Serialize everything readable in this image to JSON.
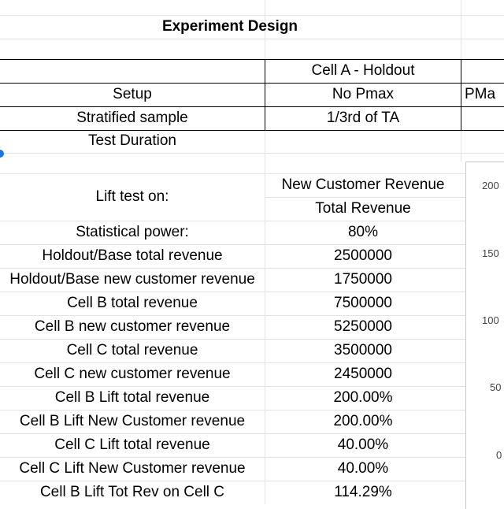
{
  "title": "Experiment Design",
  "headers": {
    "cell_a": "Cell A - Holdout",
    "cell_b_partial": "PMa"
  },
  "rows": {
    "setup": {
      "label": "Setup",
      "cell_a": "No Pmax"
    },
    "stratified": {
      "label": "Stratified sample",
      "cell_a": "1/3rd of TA"
    },
    "duration": {
      "label": "Test Duration",
      "cell_a": ""
    },
    "lift_test": {
      "label": "Lift test on:",
      "value_1": "New Customer Revenue",
      "value_2": "Total Revenue"
    }
  },
  "metrics": [
    {
      "label": "Statistical power:",
      "value": "80%"
    },
    {
      "label": "Holdout/Base total revenue",
      "value": "2500000"
    },
    {
      "label": "Holdout/Base new customer revenue",
      "value": "1750000"
    },
    {
      "label": "Cell B total revenue",
      "value": "7500000"
    },
    {
      "label": "Cell B new customer revenue",
      "value": "5250000"
    },
    {
      "label": "Cell C total revenue",
      "value": "3500000"
    },
    {
      "label": "Cell C new customer revenue",
      "value": "2450000"
    },
    {
      "label": "Cell B Lift total revenue",
      "value": "200.00%"
    },
    {
      "label": "Cell B Lift New Customer revenue",
      "value": "200.00%"
    },
    {
      "label": "Cell C Lift total revenue",
      "value": "40.00%"
    },
    {
      "label": "Cell C Lift New Customer revenue",
      "value": "40.00%"
    },
    {
      "label": "Cell B Lift Tot Rev on Cell C",
      "value": "114.29%"
    }
  ],
  "chart_axis_ticks": [
    "200",
    "150",
    "100",
    "50",
    "0"
  ],
  "colors": {
    "gridline": "#e2e3e3",
    "border": "#000000",
    "selection": "#1a73e8"
  }
}
